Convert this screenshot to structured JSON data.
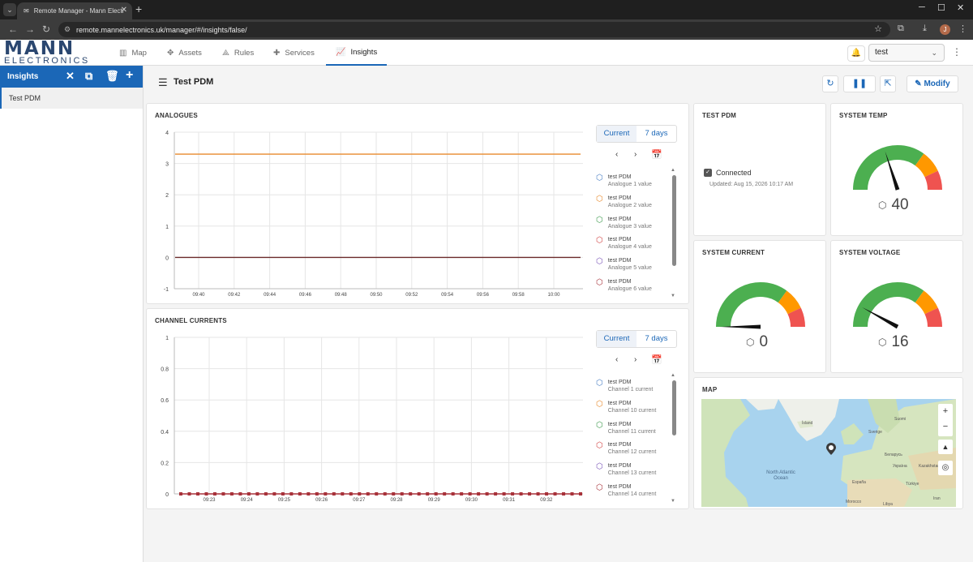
{
  "browser": {
    "tab_title": "Remote Manager - Mann Electr",
    "url": "remote.mannelectronics.uk/manager/#/insights/false/",
    "avatar_letter": "J"
  },
  "app": {
    "logo_line1": "MANN",
    "logo_line2": "ELECTRONICS",
    "nav": [
      {
        "label": "Map",
        "icon": "map-icon"
      },
      {
        "label": "Assets",
        "icon": "assets-icon"
      },
      {
        "label": "Rules",
        "icon": "rules-icon"
      },
      {
        "label": "Services",
        "icon": "puzzle-icon"
      },
      {
        "label": "Insights",
        "icon": "chart-icon"
      }
    ],
    "active_nav": "Insights",
    "realm": "test"
  },
  "sidebar": {
    "title": "Insights",
    "items": [
      "Test PDM"
    ]
  },
  "dashboard": {
    "title": "Test PDM",
    "modify_label": "Modify"
  },
  "analogues": {
    "title": "ANALOGUES",
    "toggle": [
      "Current",
      "7 days"
    ],
    "legend": [
      {
        "name": "test PDM",
        "sub": "Analogue 1 value",
        "color": "#4a7fc4"
      },
      {
        "name": "test PDM",
        "sub": "Analogue 2 value",
        "color": "#e88a2d"
      },
      {
        "name": "test PDM",
        "sub": "Analogue 3 value",
        "color": "#3e9a4e"
      },
      {
        "name": "test PDM",
        "sub": "Analogue 4 value",
        "color": "#d24545"
      },
      {
        "name": "test PDM",
        "sub": "Analogue 5 value",
        "color": "#7a55b8"
      },
      {
        "name": "test PDM",
        "sub": "Analogue 6 value",
        "color": "#a8323a"
      }
    ]
  },
  "currents": {
    "title": "CHANNEL CURRENTS",
    "toggle": [
      "Current",
      "7 days"
    ],
    "legend": [
      {
        "name": "test PDM",
        "sub": "Channel 1 current",
        "color": "#4a7fc4"
      },
      {
        "name": "test PDM",
        "sub": "Channel 10 current",
        "color": "#e88a2d"
      },
      {
        "name": "test PDM",
        "sub": "Channel 11 current",
        "color": "#3e9a4e"
      },
      {
        "name": "test PDM",
        "sub": "Channel 12 current",
        "color": "#d24545"
      },
      {
        "name": "test PDM",
        "sub": "Channel 13 current",
        "color": "#7a55b8"
      },
      {
        "name": "test PDM",
        "sub": "Channel 14 current",
        "color": "#a8323a"
      }
    ]
  },
  "status": {
    "title": "TEST PDM",
    "connected_label": "Connected",
    "updated": "Updated: Aug 15, 2026 10:17 AM"
  },
  "gauges": [
    {
      "title": "SYSTEM TEMP",
      "value": "40",
      "level": 0.4
    },
    {
      "title": "SYSTEM CURRENT",
      "value": "0",
      "level": 0.0
    },
    {
      "title": "SYSTEM VOLTAGE",
      "value": "16",
      "level": 0.16
    }
  ],
  "map": {
    "title": "MAP",
    "labels": [
      "North Atlantic Ocean",
      "Ísland",
      "Sverige",
      "Suomi",
      "Беларусь",
      "Україна",
      "Kazakhstan",
      "España",
      "Türkiye",
      "Morocco",
      "Libya",
      "Iran"
    ]
  },
  "chart_data": [
    {
      "type": "line",
      "title": "ANALOGUES",
      "x": [
        "09:40",
        "09:42",
        "09:44",
        "09:46",
        "09:48",
        "09:50",
        "09:52",
        "09:54",
        "09:56",
        "09:58",
        "10:00"
      ],
      "ylim": [
        -1,
        4
      ],
      "yticks": [
        -1,
        0,
        1,
        2,
        3,
        4
      ],
      "series": [
        {
          "name": "Analogue 2 value",
          "values": [
            3.3,
            3.3,
            3.3,
            3.3,
            3.3,
            3.3,
            3.3,
            3.3,
            3.3,
            3.3,
            3.3
          ],
          "color": "#e88a2d"
        },
        {
          "name": "Analogue 6 value",
          "values": [
            0,
            0,
            0,
            0,
            0,
            0,
            0,
            0,
            0,
            0,
            0
          ],
          "color": "#6b2a2a"
        }
      ],
      "grid": true
    },
    {
      "type": "line",
      "title": "CHANNEL CURRENTS",
      "x": [
        "09:23",
        "09:24",
        "09:25",
        "09:26",
        "09:27",
        "09:28",
        "09:29",
        "09:30",
        "09:31",
        "09:32"
      ],
      "ylim": [
        0,
        1
      ],
      "yticks": [
        "0",
        "0.2",
        "0.4",
        "0.6",
        "0.8",
        "1"
      ],
      "series": [
        {
          "name": "Channel 14 current",
          "values": [
            0,
            0,
            0,
            0,
            0,
            0,
            0,
            0,
            0,
            0
          ],
          "color": "#a8323a"
        }
      ],
      "grid": true
    }
  ]
}
